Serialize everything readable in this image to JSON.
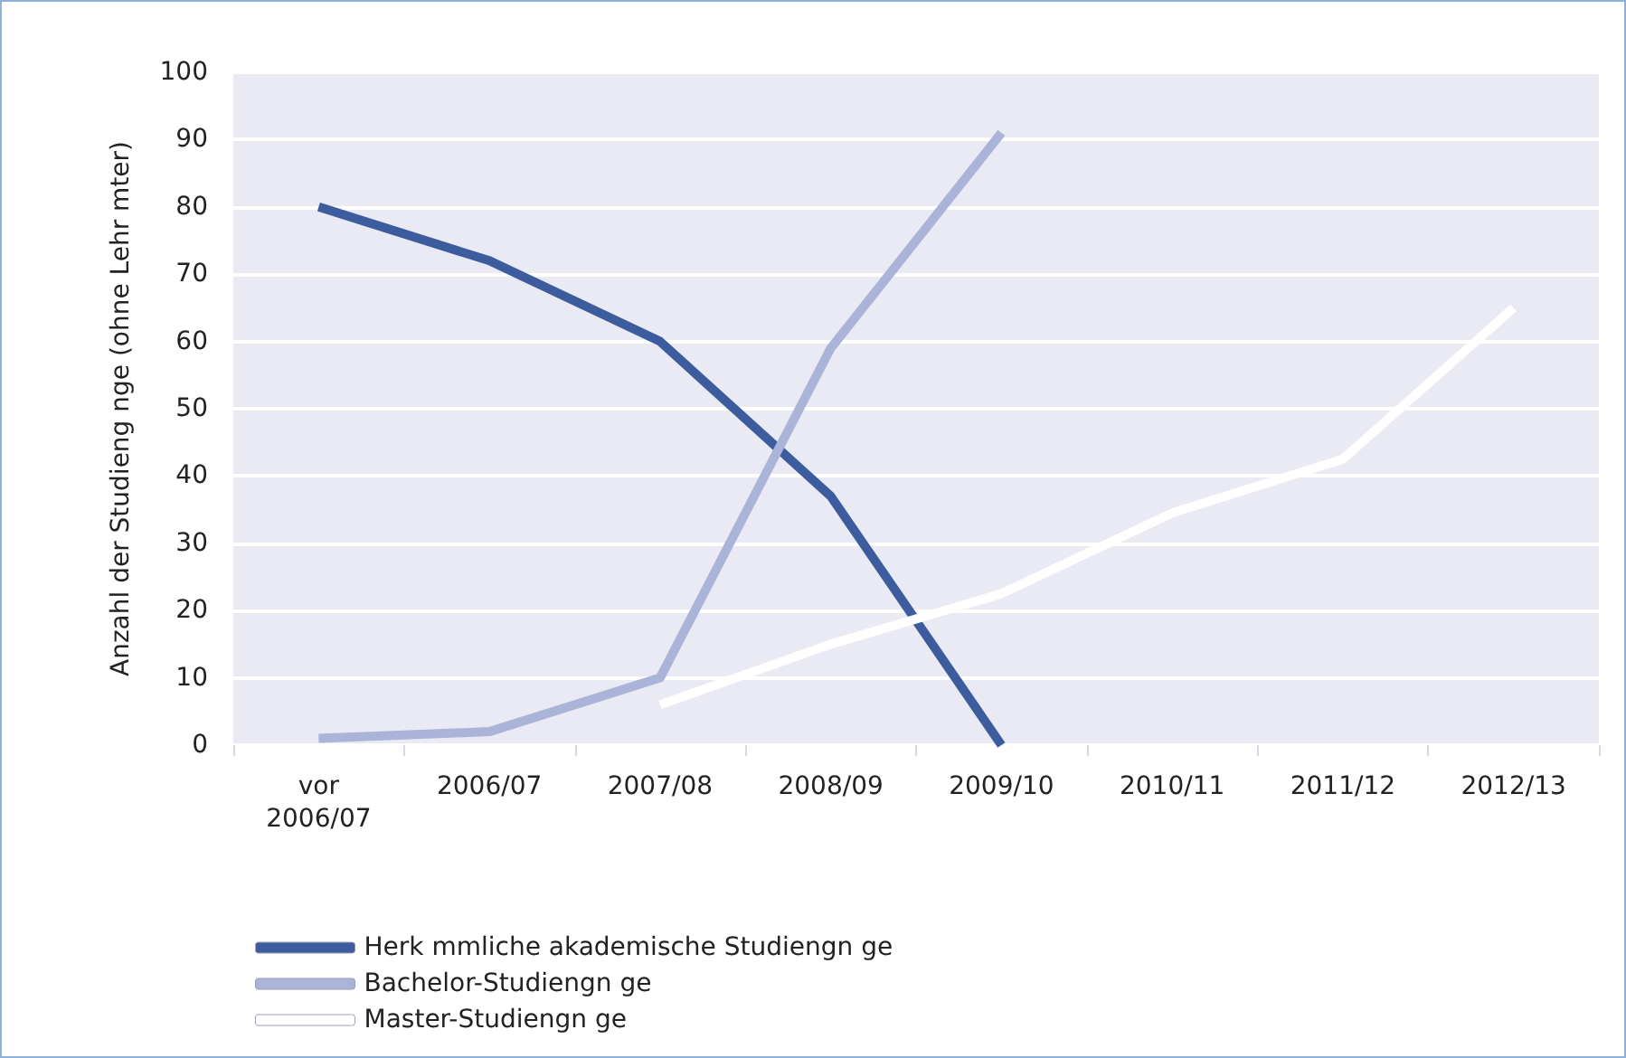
{
  "chart_data": {
    "type": "line",
    "ylabel": "Anzahl der Studieng nge (ohne Lehr mter)",
    "categories": [
      "vor\n2006/07",
      "2006/07",
      "2007/08",
      "2008/09",
      "2009/10",
      "2010/11",
      "2011/12",
      "2012/13"
    ],
    "series": [
      {
        "name": "Herk mmliche akademische Studiengn ge",
        "color": "#3d5c9e",
        "values": [
          80,
          72,
          60,
          37,
          0,
          null,
          null,
          null
        ]
      },
      {
        "name": "Bachelor-Studiengn ge",
        "color": "#aab3d8",
        "values": [
          1,
          2,
          10,
          59,
          91,
          null,
          null,
          null
        ]
      },
      {
        "name": "Master-Studiengn ge",
        "color": "#ffffff",
        "values": [
          null,
          null,
          6,
          15,
          22.5,
          34.5,
          42.5,
          65
        ]
      }
    ],
    "ylim": [
      0,
      100
    ],
    "yticks": [
      0,
      10,
      20,
      30,
      40,
      50,
      60,
      70,
      80,
      90,
      100
    ],
    "grid": "y",
    "legend": "bottom",
    "marker": "none",
    "line_style": "solid"
  }
}
